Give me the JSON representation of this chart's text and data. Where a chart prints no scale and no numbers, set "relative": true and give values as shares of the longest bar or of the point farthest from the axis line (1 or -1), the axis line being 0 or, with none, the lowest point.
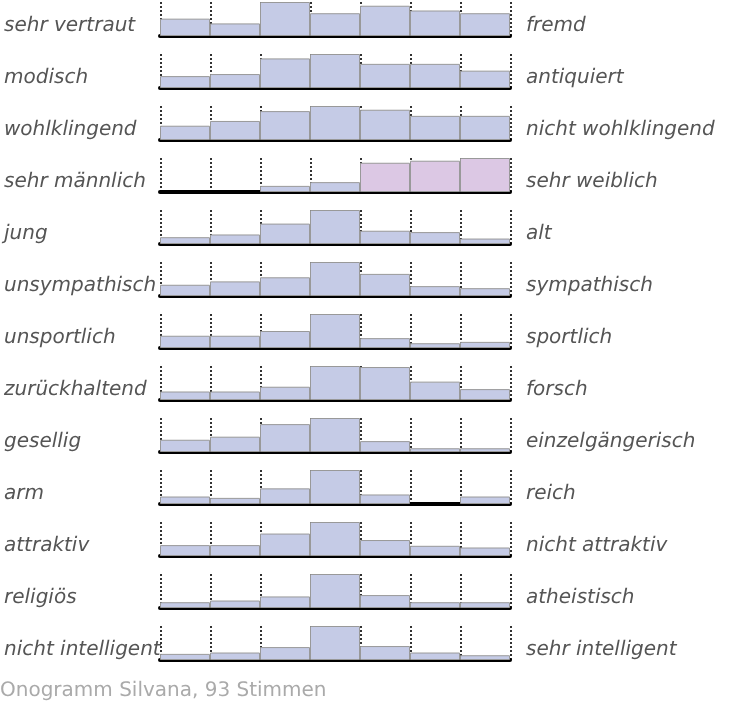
{
  "chart_data": [
    {
      "type": "bar",
      "relative": true,
      "grid": "x",
      "ylabel": "sehr vertraut",
      "y2label": "fremd",
      "categories": [
        null,
        null,
        null,
        null,
        null,
        null,
        null
      ],
      "values": [
        0.51,
        0.37,
        1,
        0.67,
        0.89,
        0.75,
        0.67
      ],
      "colors": [
        "#c5cbe6",
        "#c5cbe6",
        "#c5cbe6",
        "#c5cbe6",
        "#c5cbe6",
        "#c5cbe6",
        "#c5cbe6"
      ]
    },
    {
      "type": "bar",
      "relative": true,
      "grid": "x",
      "ylabel": "modisch",
      "y2label": "antiquiert",
      "categories": [
        null,
        null,
        null,
        null,
        null,
        null,
        null
      ],
      "values": [
        0.35,
        0.41,
        0.87,
        1,
        0.71,
        0.71,
        0.51
      ],
      "colors": [
        "#c5cbe6",
        "#c5cbe6",
        "#c5cbe6",
        "#c5cbe6",
        "#c5cbe6",
        "#c5cbe6",
        "#c5cbe6"
      ]
    },
    {
      "type": "bar",
      "relative": true,
      "grid": "x",
      "ylabel": "wohlklingend",
      "y2label": "nicht wohlklingend",
      "categories": [
        null,
        null,
        null,
        null,
        null,
        null,
        null
      ],
      "values": [
        0.42,
        0.56,
        0.85,
        1,
        0.89,
        0.71,
        0.71
      ],
      "colors": [
        "#c5cbe6",
        "#c5cbe6",
        "#c5cbe6",
        "#c5cbe6",
        "#c5cbe6",
        "#c5cbe6",
        "#c5cbe6"
      ]
    },
    {
      "type": "bar",
      "relative": true,
      "grid": "x",
      "ylabel": "sehr männlich",
      "y2label": "sehr weiblich",
      "categories": [
        null,
        null,
        null,
        null,
        null,
        null,
        null
      ],
      "values": [
        0,
        0,
        0.18,
        0.29,
        0.86,
        0.92,
        1
      ],
      "colors": [
        "#c5cbe6",
        "#c5cbe6",
        "#c5cbe6",
        "#c5cbe6",
        "#dcc8e4",
        "#dcc8e4",
        "#dcc8e4"
      ]
    },
    {
      "type": "bar",
      "relative": true,
      "grid": "x",
      "ylabel": "jung",
      "y2label": "alt",
      "categories": [
        null,
        null,
        null,
        null,
        null,
        null,
        null
      ],
      "values": [
        0.2,
        0.28,
        0.6,
        1,
        0.39,
        0.35,
        0.16
      ],
      "colors": [
        "#c5cbe6",
        "#c5cbe6",
        "#c5cbe6",
        "#c5cbe6",
        "#c5cbe6",
        "#c5cbe6",
        "#c5cbe6"
      ]
    },
    {
      "type": "bar",
      "relative": true,
      "grid": "x",
      "ylabel": "unsympathisch",
      "y2label": "sympathisch",
      "categories": [
        null,
        null,
        null,
        null,
        null,
        null,
        null
      ],
      "values": [
        0.33,
        0.43,
        0.55,
        1,
        0.65,
        0.29,
        0.23
      ],
      "colors": [
        "#c5cbe6",
        "#c5cbe6",
        "#c5cbe6",
        "#c5cbe6",
        "#c5cbe6",
        "#c5cbe6",
        "#c5cbe6"
      ]
    },
    {
      "type": "bar",
      "relative": true,
      "grid": "x",
      "ylabel": "unsportlich",
      "y2label": "sportlich",
      "categories": [
        null,
        null,
        null,
        null,
        null,
        null,
        null
      ],
      "values": [
        0.36,
        0.36,
        0.5,
        1,
        0.29,
        0.14,
        0.18
      ],
      "colors": [
        "#c5cbe6",
        "#c5cbe6",
        "#c5cbe6",
        "#c5cbe6",
        "#c5cbe6",
        "#c5cbe6",
        "#c5cbe6"
      ]
    },
    {
      "type": "bar",
      "relative": true,
      "grid": "x",
      "ylabel": "zurückhaltend",
      "y2label": "forsch",
      "categories": [
        null,
        null,
        null,
        null,
        null,
        null,
        null
      ],
      "values": [
        0.25,
        0.25,
        0.39,
        1,
        0.97,
        0.54,
        0.32
      ],
      "colors": [
        "#c5cbe6",
        "#c5cbe6",
        "#c5cbe6",
        "#c5cbe6",
        "#c5cbe6",
        "#c5cbe6",
        "#c5cbe6"
      ]
    },
    {
      "type": "bar",
      "relative": true,
      "grid": "x",
      "ylabel": "gesellig",
      "y2label": "einzelgängerisch",
      "categories": [
        null,
        null,
        null,
        null,
        null,
        null,
        null
      ],
      "values": [
        0.36,
        0.45,
        0.82,
        1,
        0.32,
        0.11,
        0.11
      ],
      "colors": [
        "#c5cbe6",
        "#c5cbe6",
        "#c5cbe6",
        "#c5cbe6",
        "#c5cbe6",
        "#c5cbe6",
        "#c5cbe6"
      ]
    },
    {
      "type": "bar",
      "relative": true,
      "grid": "x",
      "ylabel": "arm",
      "y2label": "reich",
      "categories": [
        null,
        null,
        null,
        null,
        null,
        null,
        null
      ],
      "values": [
        0.22,
        0.18,
        0.46,
        1,
        0.28,
        0,
        0.22
      ],
      "colors": [
        "#c5cbe6",
        "#c5cbe6",
        "#c5cbe6",
        "#c5cbe6",
        "#c5cbe6",
        "#c5cbe6",
        "#c5cbe6"
      ]
    },
    {
      "type": "bar",
      "relative": true,
      "grid": "x",
      "ylabel": "attraktiv",
      "y2label": "nicht attraktiv",
      "categories": [
        null,
        null,
        null,
        null,
        null,
        null,
        null
      ],
      "values": [
        0.32,
        0.32,
        0.66,
        1,
        0.47,
        0.3,
        0.25
      ],
      "colors": [
        "#c5cbe6",
        "#c5cbe6",
        "#c5cbe6",
        "#c5cbe6",
        "#c5cbe6",
        "#c5cbe6",
        "#c5cbe6"
      ]
    },
    {
      "type": "bar",
      "relative": true,
      "grid": "x",
      "ylabel": "religiös",
      "y2label": "atheistisch",
      "categories": [
        null,
        null,
        null,
        null,
        null,
        null,
        null
      ],
      "values": [
        0.17,
        0.22,
        0.34,
        1,
        0.38,
        0.17,
        0.17
      ],
      "colors": [
        "#c5cbe6",
        "#c5cbe6",
        "#c5cbe6",
        "#c5cbe6",
        "#c5cbe6",
        "#c5cbe6",
        "#c5cbe6"
      ]
    },
    {
      "type": "bar",
      "relative": true,
      "grid": "x",
      "ylabel": "nicht intelligent",
      "y2label": "sehr intelligent",
      "categories": [
        null,
        null,
        null,
        null,
        null,
        null,
        null
      ],
      "values": [
        0.18,
        0.22,
        0.38,
        1,
        0.41,
        0.22,
        0.14
      ],
      "colors": [
        "#c5cbe6",
        "#c5cbe6",
        "#c5cbe6",
        "#c5cbe6",
        "#c5cbe6",
        "#c5cbe6",
        "#c5cbe6"
      ],
      "annotations": [
        "Onogramm Silvana, 93 Stimmen"
      ]
    }
  ]
}
